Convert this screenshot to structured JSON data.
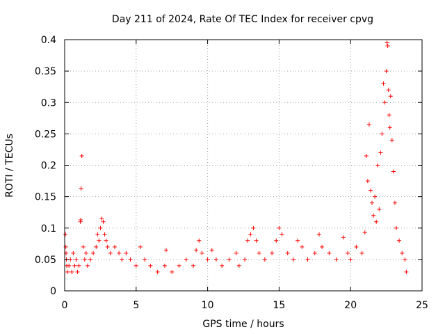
{
  "chart_data": {
    "type": "scatter",
    "title": "Day 211 of 2024, Rate Of TEC Index for receiver cpvg",
    "xlabel": "GPS time / hours",
    "ylabel": "ROTI / TECUs",
    "xlim": [
      0,
      25
    ],
    "ylim": [
      0,
      0.4
    ],
    "xticks": [
      0,
      5,
      10,
      15,
      20,
      25
    ],
    "xtick_labels": [
      "0",
      "5",
      "10",
      "15",
      "20",
      "25"
    ],
    "yticks": [
      0,
      0.05,
      0.1,
      0.15,
      0.2,
      0.25,
      0.3,
      0.35,
      0.4
    ],
    "ytick_labels": [
      "0",
      "0.05",
      "0.1",
      "0.15",
      "0.2",
      "0.25",
      "0.3",
      "0.35",
      "0.4"
    ],
    "grid": true,
    "marker": "+",
    "color": "#ff0000",
    "series": [
      {
        "points": [
          [
            0.05,
            0.09
          ],
          [
            0.08,
            0.07
          ],
          [
            0.1,
            0.06
          ],
          [
            0.12,
            0.05
          ],
          [
            0.15,
            0.04
          ],
          [
            0.2,
            0.03
          ],
          [
            0.3,
            0.04
          ],
          [
            0.4,
            0.05
          ],
          [
            0.5,
            0.03
          ],
          [
            0.6,
            0.06
          ],
          [
            0.7,
            0.04
          ],
          [
            0.8,
            0.05
          ],
          [
            0.9,
            0.03
          ],
          [
            1.0,
            0.04
          ],
          [
            1.1,
            0.11
          ],
          [
            1.12,
            0.113
          ],
          [
            1.15,
            0.163
          ],
          [
            1.2,
            0.215
          ],
          [
            1.3,
            0.07
          ],
          [
            1.4,
            0.05
          ],
          [
            1.5,
            0.06
          ],
          [
            1.6,
            0.04
          ],
          [
            1.8,
            0.05
          ],
          [
            2.0,
            0.06
          ],
          [
            2.2,
            0.07
          ],
          [
            2.3,
            0.09
          ],
          [
            2.4,
            0.08
          ],
          [
            2.5,
            0.1
          ],
          [
            2.6,
            0.115
          ],
          [
            2.7,
            0.11
          ],
          [
            2.8,
            0.09
          ],
          [
            2.9,
            0.08
          ],
          [
            3.0,
            0.07
          ],
          [
            3.2,
            0.06
          ],
          [
            3.5,
            0.07
          ],
          [
            3.8,
            0.06
          ],
          [
            4.0,
            0.05
          ],
          [
            4.3,
            0.06
          ],
          [
            4.6,
            0.05
          ],
          [
            5.0,
            0.04
          ],
          [
            5.3,
            0.07
          ],
          [
            5.6,
            0.05
          ],
          [
            6.0,
            0.04
          ],
          [
            6.5,
            0.03
          ],
          [
            7.0,
            0.04
          ],
          [
            7.1,
            0.065
          ],
          [
            7.5,
            0.03
          ],
          [
            8.0,
            0.04
          ],
          [
            8.5,
            0.05
          ],
          [
            9.0,
            0.04
          ],
          [
            9.2,
            0.065
          ],
          [
            9.4,
            0.08
          ],
          [
            9.6,
            0.06
          ],
          [
            10.0,
            0.05
          ],
          [
            10.3,
            0.065
          ],
          [
            10.6,
            0.05
          ],
          [
            11.0,
            0.04
          ],
          [
            11.5,
            0.05
          ],
          [
            12.0,
            0.06
          ],
          [
            12.2,
            0.04
          ],
          [
            12.6,
            0.05
          ],
          [
            12.8,
            0.08
          ],
          [
            13.0,
            0.09
          ],
          [
            13.2,
            0.1
          ],
          [
            13.4,
            0.08
          ],
          [
            13.6,
            0.06
          ],
          [
            14.0,
            0.05
          ],
          [
            14.5,
            0.06
          ],
          [
            14.8,
            0.08
          ],
          [
            15.0,
            0.1
          ],
          [
            15.2,
            0.09
          ],
          [
            15.6,
            0.06
          ],
          [
            16.0,
            0.05
          ],
          [
            16.3,
            0.08
          ],
          [
            16.6,
            0.07
          ],
          [
            17.0,
            0.05
          ],
          [
            17.5,
            0.06
          ],
          [
            17.8,
            0.09
          ],
          [
            18.0,
            0.07
          ],
          [
            18.5,
            0.06
          ],
          [
            19.0,
            0.05
          ],
          [
            19.5,
            0.085
          ],
          [
            19.8,
            0.06
          ],
          [
            20.0,
            0.05
          ],
          [
            20.4,
            0.07
          ],
          [
            20.8,
            0.06
          ],
          [
            21.0,
            0.093
          ],
          [
            21.1,
            0.215
          ],
          [
            21.2,
            0.175
          ],
          [
            21.3,
            0.265
          ],
          [
            21.4,
            0.16
          ],
          [
            21.5,
            0.14
          ],
          [
            21.6,
            0.12
          ],
          [
            21.7,
            0.15
          ],
          [
            21.8,
            0.11
          ],
          [
            21.9,
            0.2
          ],
          [
            22.0,
            0.13
          ],
          [
            22.1,
            0.22
          ],
          [
            22.2,
            0.25
          ],
          [
            22.3,
            0.33
          ],
          [
            22.4,
            0.3
          ],
          [
            22.5,
            0.35
          ],
          [
            22.55,
            0.395
          ],
          [
            22.6,
            0.39
          ],
          [
            22.65,
            0.32
          ],
          [
            22.7,
            0.28
          ],
          [
            22.75,
            0.26
          ],
          [
            22.8,
            0.31
          ],
          [
            22.9,
            0.24
          ],
          [
            23.0,
            0.19
          ],
          [
            23.1,
            0.14
          ],
          [
            23.2,
            0.1
          ],
          [
            23.4,
            0.08
          ],
          [
            23.6,
            0.06
          ],
          [
            23.8,
            0.05
          ],
          [
            23.9,
            0.03
          ]
        ]
      }
    ]
  }
}
